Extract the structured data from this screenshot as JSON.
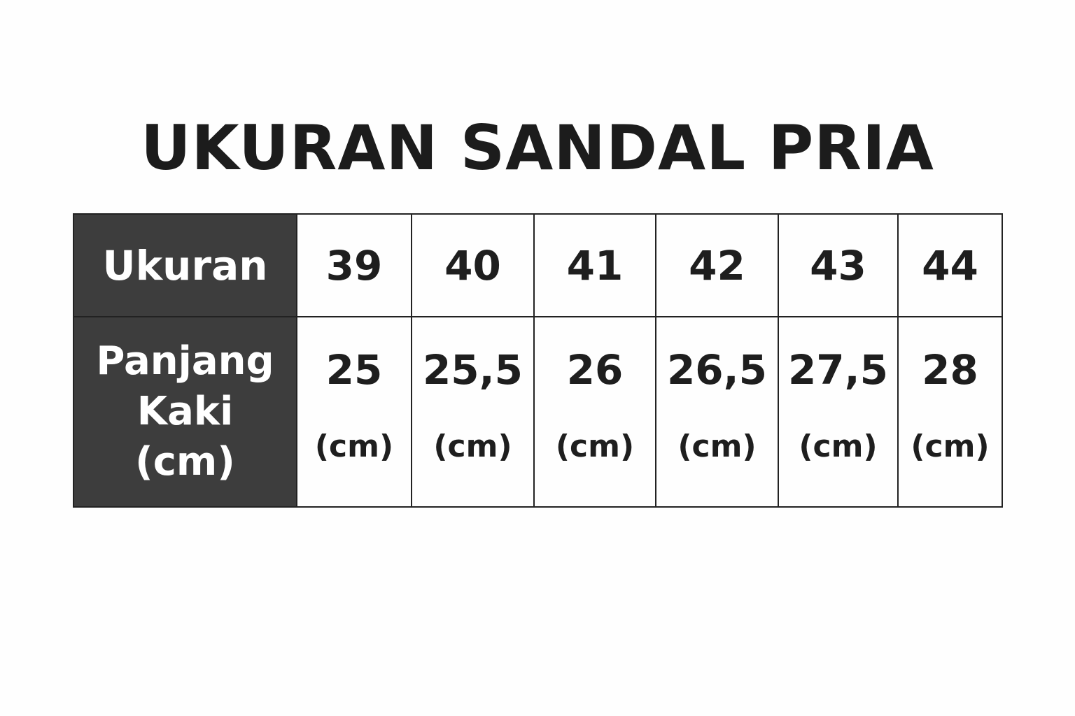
{
  "title": "UKURAN SANDAL PRIA",
  "table": {
    "row_headers": [
      "Ukuran",
      "Panjang Kaki (cm)"
    ],
    "header_line1": "Panjang",
    "header_line2": "Kaki",
    "header_line3": "(cm)",
    "sizes": [
      "39",
      "40",
      "41",
      "42",
      "43",
      "44"
    ],
    "lengths": [
      "25",
      "25,5",
      "26",
      "26,5",
      "27,5",
      "28"
    ],
    "unit": "(cm)",
    "header_bg": "#3d3d3d"
  }
}
